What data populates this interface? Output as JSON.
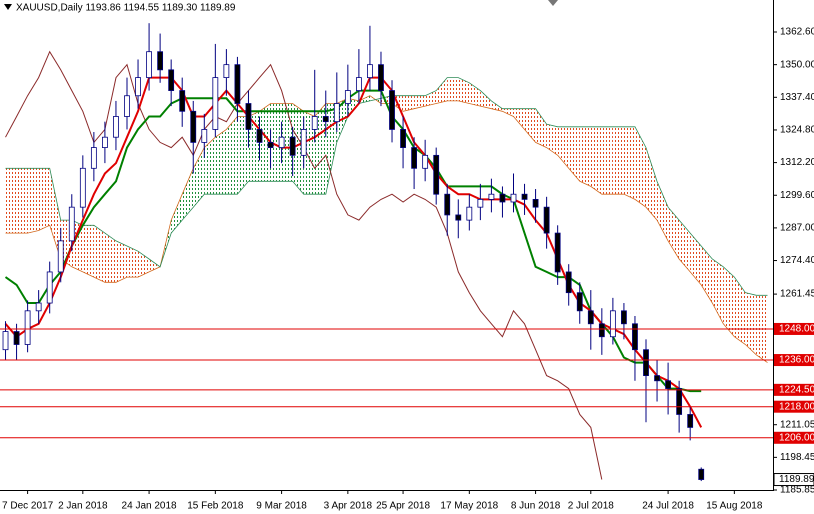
{
  "chart_data": {
    "type": "candlestick",
    "title": "XAUUSD,Daily  1193.86 1194.55 1189.30 1189.89",
    "categories": [
      null,
      null,
      "7 Dec 2017",
      null,
      null,
      null,
      null,
      "2 Jan 2018",
      null,
      null,
      null,
      null,
      null,
      "24 Jan 2018",
      null,
      null,
      null,
      null,
      null,
      "15 Feb 2018",
      null,
      null,
      null,
      null,
      null,
      "9 Mar 2018",
      null,
      null,
      null,
      null,
      null,
      "3 Apr 2018",
      null,
      null,
      null,
      null,
      "25 Apr 2018",
      null,
      null,
      null,
      null,
      null,
      "17 May 2018",
      null,
      null,
      null,
      null,
      null,
      "8 Jun 2018",
      null,
      null,
      null,
      null,
      "2 Jul 2018",
      null,
      null,
      null,
      null,
      null,
      null,
      "24 Jul 2018",
      null,
      null,
      null,
      null,
      null,
      "15 Aug 2018",
      null,
      null,
      null
    ],
    "open": [
      1240,
      1247,
      1242,
      1255,
      1258,
      1270,
      1282,
      1295,
      1310,
      1318,
      1322,
      1330,
      1338,
      1345,
      1355,
      1348,
      1340,
      1332,
      1320,
      1325,
      1345,
      1350,
      1335,
      1325,
      1320,
      1318,
      1322,
      1315,
      1325,
      1330,
      1328,
      1335,
      1340,
      1345,
      1350,
      1340,
      1325,
      1318,
      1310,
      1315,
      1300,
      1292,
      1290,
      1295,
      1298,
      1300,
      1297,
      1300,
      1298,
      1295,
      1285,
      1270,
      1262,
      1255,
      1250,
      1245,
      1255,
      1250,
      1240,
      1230,
      1228,
      1225,
      1215,
      1193.86,
      null,
      null,
      null,
      null,
      null,
      null
    ],
    "high": [
      1251,
      1250,
      1259,
      1263,
      1274,
      1287,
      1300,
      1315,
      1324,
      1328,
      1336,
      1345,
      1352,
      1366,
      1362,
      1352,
      1345,
      1336,
      1331,
      1358,
      1356,
      1353,
      1340,
      1330,
      1325,
      1328,
      1326,
      1330,
      1348,
      1340,
      1347,
      1350,
      1356,
      1365,
      1355,
      1344,
      1330,
      1322,
      1321,
      1318,
      1304,
      1298,
      1300,
      1304,
      1306,
      1303,
      1308,
      1304,
      1302,
      1299,
      1288,
      1273,
      1266,
      1263,
      1256,
      1260,
      1258,
      1253,
      1244,
      1236,
      1235,
      1228,
      1218,
      1194.55,
      null,
      null,
      null,
      null,
      null,
      null
    ],
    "low": [
      1236,
      1236,
      1239,
      1250,
      1254,
      1266,
      1278,
      1291,
      1305,
      1312,
      1317,
      1325,
      1333,
      1340,
      1343,
      1334,
      1326,
      1308,
      1314,
      1322,
      1338,
      1328,
      1318,
      1313,
      1310,
      1312,
      1307,
      1310,
      1320,
      1322,
      1324,
      1330,
      1335,
      1340,
      1334,
      1320,
      1310,
      1302,
      1305,
      1296,
      1284,
      1283,
      1286,
      1290,
      1293,
      1291,
      1293,
      1292,
      1289,
      1279,
      1265,
      1257,
      1250,
      1240,
      1238,
      1242,
      1244,
      1228,
      1212,
      1220,
      1215,
      1208,
      1205,
      1189.3,
      null,
      null,
      null,
      null,
      null,
      null
    ],
    "close": [
      1247,
      1242,
      1255,
      1258,
      1270,
      1282,
      1295,
      1310,
      1318,
      1322,
      1330,
      1338,
      1345,
      1355,
      1348,
      1340,
      1332,
      1320,
      1325,
      1345,
      1350,
      1335,
      1325,
      1320,
      1318,
      1322,
      1315,
      1325,
      1330,
      1328,
      1335,
      1340,
      1345,
      1350,
      1340,
      1325,
      1318,
      1310,
      1315,
      1300,
      1292,
      1290,
      1295,
      1298,
      1300,
      1297,
      1300,
      1298,
      1295,
      1285,
      1270,
      1262,
      1255,
      1250,
      1245,
      1255,
      1250,
      1240,
      1230,
      1228,
      1225,
      1215,
      1210,
      1189.89,
      null,
      null,
      null,
      null,
      null,
      null
    ],
    "up_color": "#ffffff",
    "down_color": "#000000",
    "candle_outline": "#000080",
    "tenkan": {
      "color": "#e00000",
      "values": [
        1250,
        1245,
        1248,
        1250,
        1258,
        1268,
        1280,
        1290,
        1300,
        1308,
        1312,
        1322,
        1332,
        1345,
        1345,
        1345,
        1340,
        1330,
        1330,
        1335,
        1340,
        1335,
        1330,
        1325,
        1320,
        1318,
        1318,
        1320,
        1322,
        1325,
        1328,
        1330,
        1335,
        1345,
        1345,
        1340,
        1330,
        1320,
        1315,
        1308,
        1303,
        1300,
        1300,
        1298,
        1298,
        1298,
        1298,
        1296,
        1290,
        1285,
        1275,
        1265,
        1258,
        1255,
        1250,
        1248,
        1246,
        1240,
        1235,
        1230,
        1228,
        1225,
        1218,
        1210,
        null,
        null,
        null,
        null,
        null,
        null
      ]
    },
    "kijun": {
      "color": "#008000",
      "values": [
        1268,
        1265,
        1258,
        1258,
        1265,
        1270,
        1280,
        1288,
        1295,
        1300,
        1305,
        1318,
        1325,
        1330,
        1330,
        1335,
        1337,
        1337,
        1337,
        1337,
        1337,
        1332,
        1332,
        1332,
        1332,
        1332,
        1332,
        1332,
        1332,
        1332,
        1333,
        1337,
        1340,
        1340,
        1340,
        1330,
        1325,
        1318,
        1315,
        1310,
        1303,
        1303,
        1303,
        1303,
        1303,
        1300,
        1298,
        1285,
        1272,
        1270,
        1268,
        1268,
        1265,
        1255,
        1250,
        1245,
        1237,
        1235,
        1235,
        1230,
        1225,
        1225,
        1224,
        1224,
        null,
        null,
        null,
        null,
        null,
        null
      ]
    },
    "chikou": {
      "color": "#8b2a2a",
      "values": [
        1322,
        1330,
        1338,
        1345,
        1355,
        1348,
        1340,
        1332,
        1320,
        1325,
        1345,
        1350,
        1335,
        1325,
        1320,
        1318,
        1322,
        1315,
        1325,
        1330,
        1328,
        1335,
        1340,
        1345,
        1350,
        1340,
        1325,
        1318,
        1310,
        1315,
        1300,
        1292,
        1290,
        1295,
        1298,
        1300,
        1297,
        1300,
        1298,
        1295,
        1285,
        1270,
        1262,
        1255,
        1250,
        1245,
        1255,
        1250,
        1240,
        1230,
        1228,
        1225,
        1215,
        1210,
        1189.89,
        null,
        null,
        null,
        null,
        null,
        null,
        null,
        null,
        null,
        null,
        null,
        null,
        null,
        null,
        null
      ]
    },
    "span_a": {
      "color": "#d2691e",
      "values": [
        1285,
        1285,
        1285,
        1286,
        1288,
        1275,
        1272,
        1270,
        1268,
        1266,
        1266,
        1268,
        1268,
        1270,
        1272,
        1290,
        1300,
        1310,
        1318,
        1322,
        1325,
        1330,
        1330,
        1332,
        1335,
        1335,
        1335,
        1332,
        1330,
        1335,
        1335,
        1337,
        1336,
        1338,
        1335,
        1335,
        1332,
        1333,
        1334,
        1335,
        1336,
        1336,
        1335,
        1334,
        1333,
        1332,
        1330,
        1325,
        1320,
        1318,
        1315,
        1310,
        1305,
        1303,
        1300,
        1300,
        1300,
        1298,
        1295,
        1290,
        1282,
        1275,
        1270,
        1265,
        1258,
        1250,
        1245,
        1242,
        1238,
        1235
      ]
    },
    "span_b": {
      "color": "#2e8b57",
      "values": [
        1310,
        1310,
        1310,
        1310,
        1310,
        1290,
        1290,
        1288,
        1288,
        1285,
        1282,
        1280,
        1278,
        1275,
        1272,
        1285,
        1290,
        1295,
        1300,
        1300,
        1300,
        1300,
        1305,
        1305,
        1305,
        1305,
        1305,
        1300,
        1300,
        1300,
        1320,
        1330,
        1335,
        1336,
        1337,
        1338,
        1338,
        1338,
        1338,
        1340,
        1345,
        1345,
        1343,
        1340,
        1336,
        1333,
        1333,
        1333,
        1333,
        1327,
        1326,
        1326,
        1326,
        1326,
        1326,
        1326,
        1326,
        1326,
        1318,
        1305,
        1295,
        1290,
        1285,
        1280,
        1275,
        1272,
        1268,
        1262,
        1261,
        1261
      ]
    },
    "bear_cloud_color": "#e04a1f",
    "bull_cloud_color": "#1f8f3a",
    "ylim": [
      1185.85,
      1374.95
    ],
    "yticks": [
      {
        "value": 1362.6,
        "label": "1362.60"
      },
      {
        "value": 1350,
        "label": "1350.00"
      },
      {
        "value": 1337.4,
        "label": "1337.40"
      },
      {
        "value": 1324.8,
        "label": "1324.80"
      },
      {
        "value": 1312.2,
        "label": "1312.20"
      },
      {
        "value": 1299.6,
        "label": "1299.60"
      },
      {
        "value": 1287,
        "label": "1287.00"
      },
      {
        "value": 1274.4,
        "label": "1274.40"
      },
      {
        "value": 1261.45,
        "label": "1261.45"
      },
      {
        "value": 1211.05,
        "label": "1211.05"
      },
      {
        "value": 1198.45,
        "label": "1198.45"
      },
      {
        "value": 1185.85,
        "label": "1185.85"
      }
    ],
    "levels": [
      {
        "value": 1248,
        "label": "1248.00"
      },
      {
        "value": 1236,
        "label": "1236.00"
      },
      {
        "value": 1224.5,
        "label": "1224.50"
      },
      {
        "value": 1218,
        "label": "1218.00"
      },
      {
        "value": 1206,
        "label": "1206.00"
      }
    ],
    "level_color": "#e00000",
    "grid": false
  }
}
